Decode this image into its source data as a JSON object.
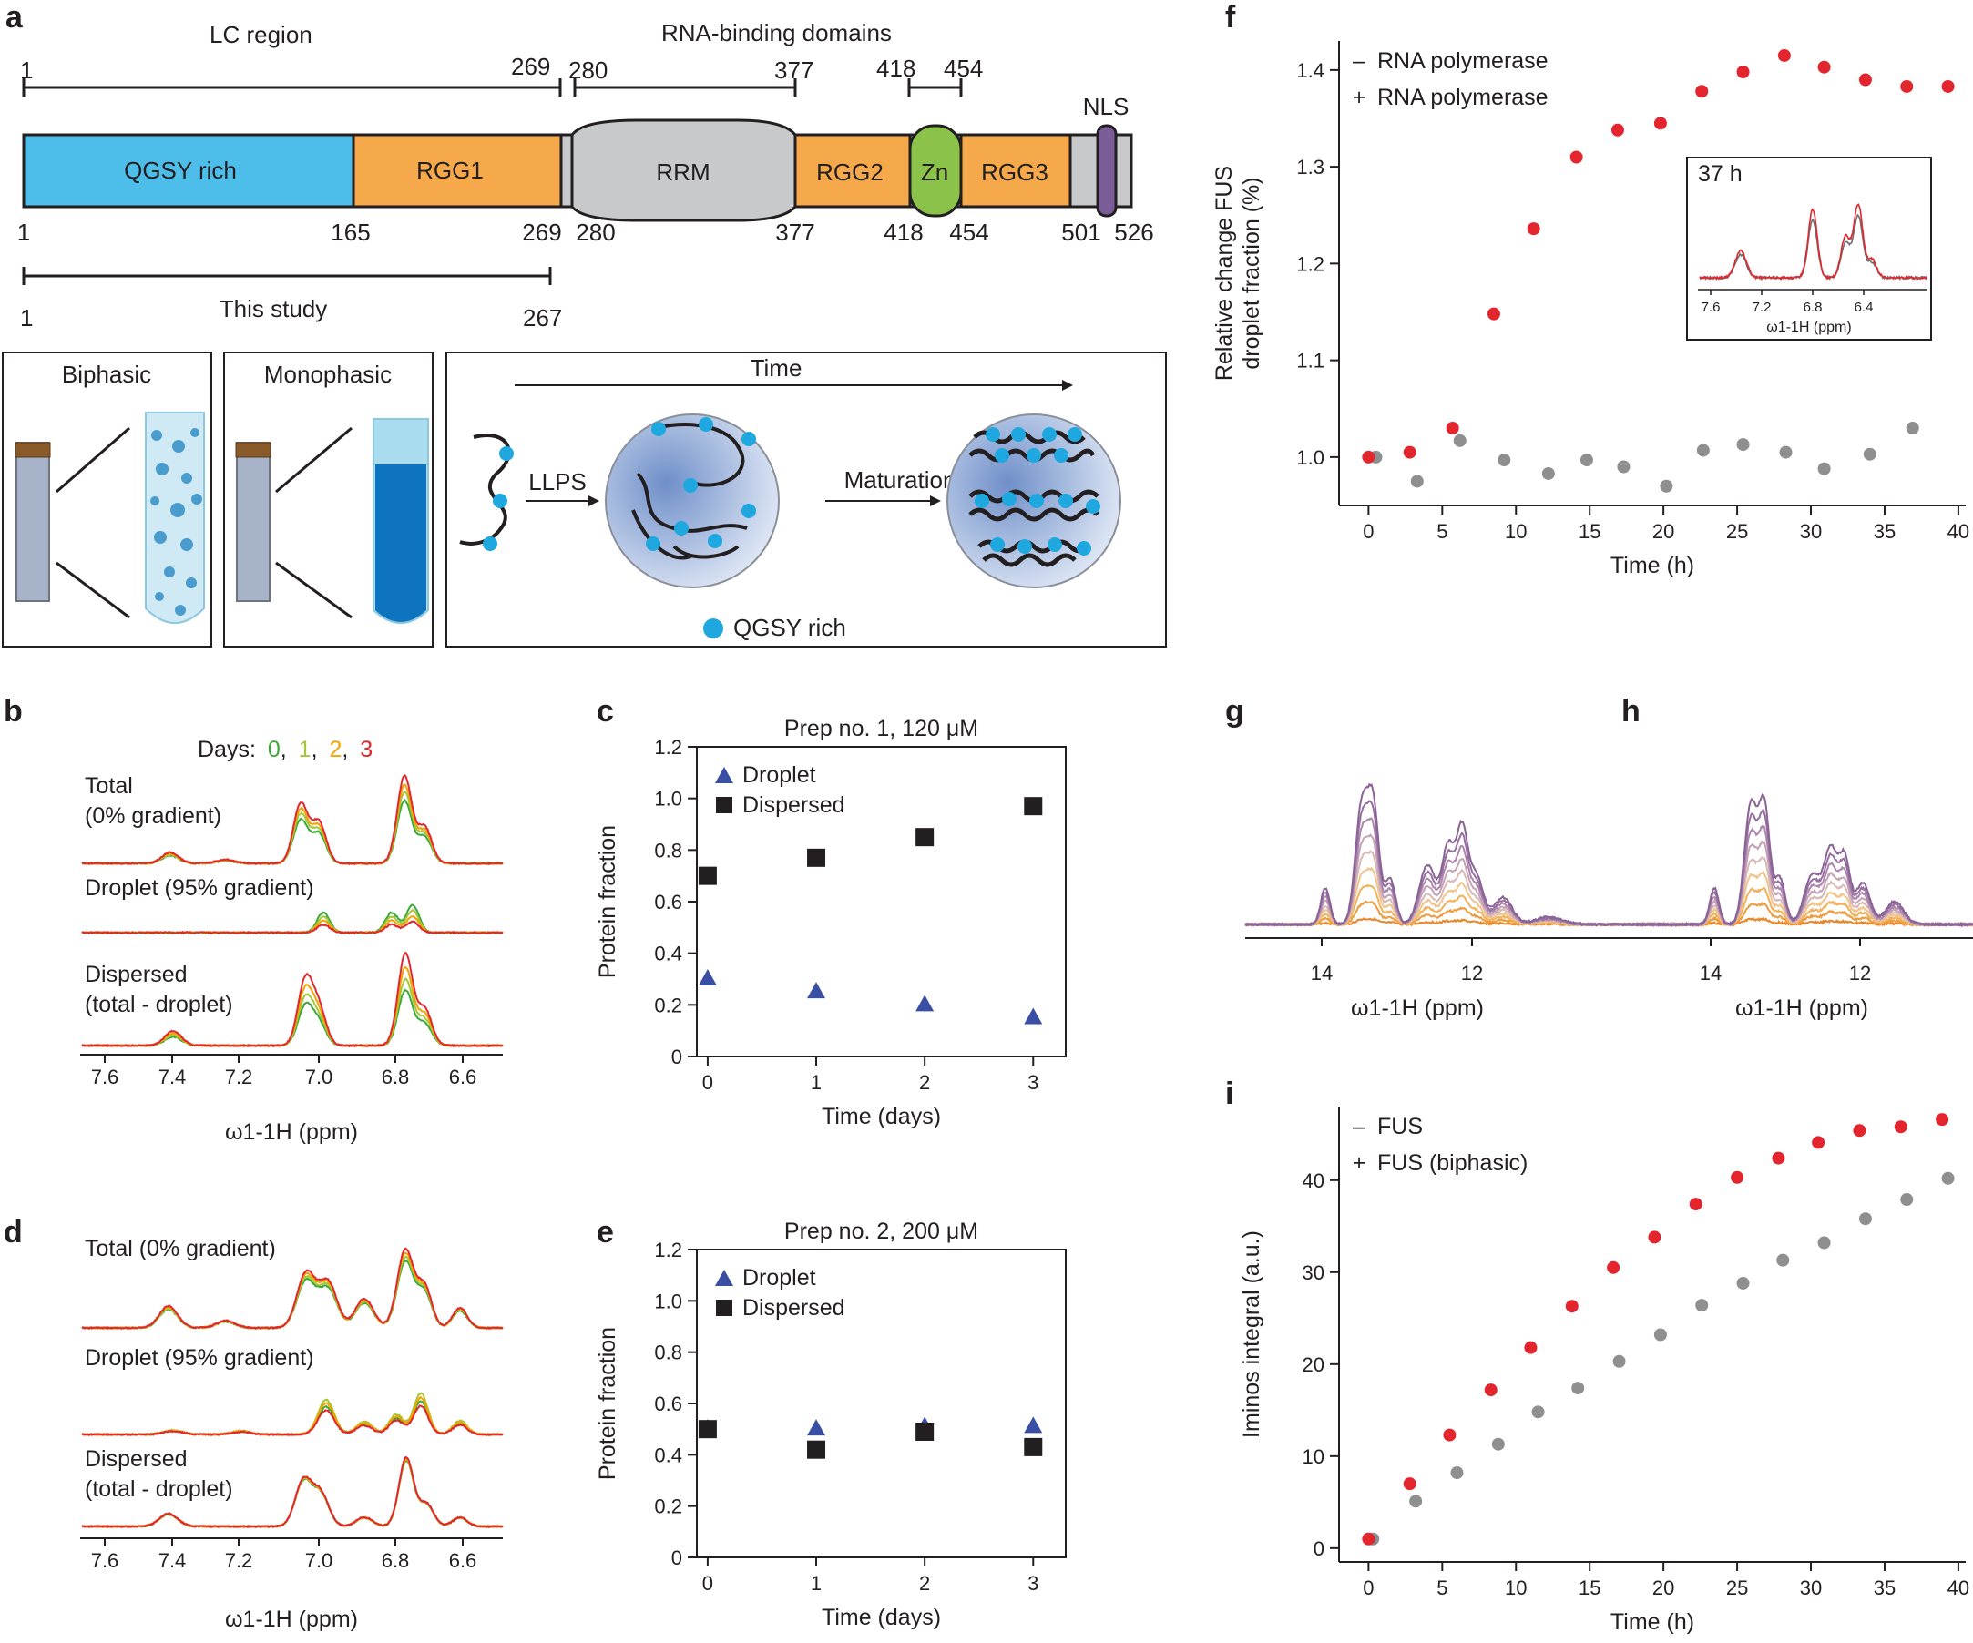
{
  "panels": {
    "a": "a",
    "b": "b",
    "c": "c",
    "d": "d",
    "e": "e",
    "f": "f",
    "g": "g",
    "h": "h",
    "i": "i"
  },
  "panel_a": {
    "lc_region": "LC region",
    "rbd_label": "RNA-binding domains",
    "bar_nums": {
      "lc_start": "1",
      "lc_end": "269",
      "rrm_start": "280",
      "rrm_end": "377",
      "zn_start": "418",
      "zn_end": "454"
    },
    "domains": {
      "qgsy": "QGSY rich",
      "rgg1": "RGG1",
      "rrm": "RRM",
      "rgg2": "RGG2",
      "zn": "Zn",
      "rgg3": "RGG3",
      "nls": "NLS"
    },
    "positions": [
      "1",
      "165",
      "269",
      "280",
      "377",
      "418",
      "454",
      "501",
      "526"
    ],
    "this_study": "This study",
    "study_start": "1",
    "study_end": "267",
    "biphasic": "Biphasic",
    "monophasic": "Monophasic",
    "time": "Time",
    "llps": "LLPS",
    "maturation": "Maturation",
    "qgsy_legend": "QGSY rich",
    "colors": {
      "qgsy": "#4dbde9",
      "rgg": "#f5a94a",
      "rrm": "#c8c9ca",
      "zn": "#8bc34a",
      "nls": "#7a5c99",
      "nls_text": "#8e2e87",
      "dot": "#1fa8e0"
    }
  },
  "panel_b": {
    "days_prefix": "Days:",
    "days": [
      "0",
      "1",
      "2",
      "3"
    ],
    "sep": ",",
    "day_colors": [
      "#3aa935",
      "#a5c63b",
      "#f2a400",
      "#e3262e"
    ],
    "trace_labels": {
      "total1": "Total",
      "total2": "(0% gradient)",
      "droplet": "Droplet (95% gradient)",
      "dispersed1": "Dispersed",
      "dispersed2": "(total - droplet)"
    },
    "xticks": [
      "7.6",
      "7.4",
      "7.2",
      "7.0",
      "6.8",
      "6.6"
    ],
    "xlabel": "ω1-1H (ppm)"
  },
  "panel_d": {
    "trace_labels": {
      "total": "Total (0% gradient)",
      "droplet": "Droplet (95% gradient)",
      "dispersed1": "Dispersed",
      "dispersed2": "(total - droplet)"
    },
    "xticks": [
      "7.6",
      "7.4",
      "7.2",
      "7.0",
      "6.8",
      "6.6"
    ],
    "xlabel": "ω1-1H (ppm)"
  },
  "panel_g": {
    "xticks": [
      "14",
      "12"
    ],
    "xlabel": "ω1-1H (ppm)"
  },
  "panel_h": {
    "xticks": [
      "14",
      "12"
    ],
    "xlabel": "ω1-1H (ppm)"
  },
  "panel_f_inset": {
    "label": "37 h",
    "xticks": [
      "7.6",
      "7.2",
      "6.8",
      "6.4"
    ],
    "xlabel": "ω1-1H (ppm)"
  },
  "chart_data": [
    {
      "id": "c",
      "type": "scatter",
      "title": "Prep no. 1, 120 μM",
      "xlabel": "Time (days)",
      "ylabel": "Protein fraction",
      "xlim": [
        -0.1,
        3.3
      ],
      "ylim": [
        0,
        1.2
      ],
      "xticks": [
        "0",
        "1",
        "2",
        "3"
      ],
      "yticks": [
        "0",
        "0.2",
        "0.4",
        "0.6",
        "0.8",
        "1.0",
        "1.2"
      ],
      "series": [
        {
          "name": "Droplet",
          "marker": "triangle",
          "color": "#3a4fa3",
          "x": [
            0,
            1,
            2,
            3
          ],
          "y": [
            0.3,
            0.25,
            0.2,
            0.15
          ]
        },
        {
          "name": "Dispersed",
          "marker": "square",
          "color": "#231f20",
          "x": [
            0,
            1,
            2,
            3
          ],
          "y": [
            0.7,
            0.77,
            0.85,
            0.97
          ]
        }
      ]
    },
    {
      "id": "e",
      "type": "scatter",
      "title": "Prep no. 2, 200 μM",
      "xlabel": "Time (days)",
      "ylabel": "Protein fraction",
      "xlim": [
        -0.1,
        3.3
      ],
      "ylim": [
        0,
        1.2
      ],
      "xticks": [
        "0",
        "1",
        "2",
        "3"
      ],
      "yticks": [
        "0",
        "0.2",
        "0.4",
        "0.6",
        "0.8",
        "1.0",
        "1.2"
      ],
      "series": [
        {
          "name": "Droplet",
          "marker": "triangle",
          "color": "#3a4fa3",
          "x": [
            0,
            1,
            2,
            3
          ],
          "y": [
            0.5,
            0.5,
            0.51,
            0.51
          ]
        },
        {
          "name": "Dispersed",
          "marker": "square",
          "color": "#231f20",
          "x": [
            0,
            1,
            2,
            3
          ],
          "y": [
            0.5,
            0.42,
            0.49,
            0.43
          ]
        }
      ]
    },
    {
      "id": "f",
      "type": "scatter",
      "title": "",
      "xlabel": "Time (h)",
      "ylabel_line1": "Relative change FUS",
      "ylabel_line2": "droplet fraction (%)",
      "xlim": [
        -2,
        40.5
      ],
      "ylim": [
        0.95,
        1.43
      ],
      "xticks": [
        "0",
        "5",
        "10",
        "15",
        "20",
        "25",
        "30",
        "35",
        "40"
      ],
      "yticks": [
        "1.0",
        "1.1",
        "1.2",
        "1.3",
        "1.4"
      ],
      "series": [
        {
          "name": "RNA polymerase",
          "sign": "–",
          "color": "#8f8f8f",
          "x": [
            0.5,
            3.3,
            6.2,
            9.2,
            12.2,
            14.8,
            17.3,
            20.2,
            22.7,
            25.4,
            28.3,
            30.9,
            34,
            36.9
          ],
          "y": [
            1.0,
            0.975,
            1.017,
            0.997,
            0.983,
            0.997,
            0.99,
            0.97,
            1.007,
            1.013,
            1.005,
            0.988,
            1.003,
            1.03
          ]
        },
        {
          "name": "RNA polymerase",
          "sign": "+",
          "color": "#e3262e",
          "x": [
            0,
            2.8,
            5.7,
            8.5,
            11.2,
            14.1,
            16.9,
            19.8,
            22.6,
            25.4,
            28.2,
            30.9,
            33.7,
            36.5,
            39.3
          ],
          "y": [
            1.0,
            1.005,
            1.03,
            1.148,
            1.236,
            1.31,
            1.338,
            1.345,
            1.378,
            1.398,
            1.415,
            1.403,
            1.39,
            1.383,
            1.383
          ]
        }
      ]
    },
    {
      "id": "i",
      "type": "scatter",
      "title": "",
      "xlabel": "Time (h)",
      "ylabel": "Iminos integral (a.u.)",
      "xlim": [
        -2,
        40.5
      ],
      "ylim": [
        -1.5,
        48
      ],
      "xticks": [
        "0",
        "5",
        "10",
        "15",
        "20",
        "25",
        "30",
        "35",
        "40"
      ],
      "yticks": [
        "0",
        "10",
        "20",
        "30",
        "40"
      ],
      "series": [
        {
          "name": "FUS",
          "sign": "–",
          "color": "#8f8f8f",
          "x": [
            0.3,
            3.2,
            6,
            8.8,
            11.5,
            14.2,
            17,
            19.8,
            22.6,
            25.4,
            28.1,
            30.9,
            33.7,
            36.5,
            39.3
          ],
          "y": [
            1,
            5.1,
            8.2,
            11.3,
            14.8,
            17.4,
            20.3,
            23.2,
            26.4,
            28.8,
            31.3,
            33.2,
            35.8,
            37.9,
            40.2
          ]
        },
        {
          "name": "FUS (biphasic)",
          "sign": "+",
          "color": "#e3262e",
          "x": [
            0,
            2.8,
            5.5,
            8.3,
            11,
            13.8,
            16.6,
            19.4,
            22.2,
            25,
            27.8,
            30.5,
            33.3,
            36.1,
            38.9
          ],
          "y": [
            1,
            7,
            12.3,
            17.2,
            21.8,
            26.3,
            30.5,
            33.8,
            37.4,
            40.3,
            42.4,
            44.1,
            45.4,
            45.8,
            46.6
          ]
        }
      ]
    }
  ]
}
